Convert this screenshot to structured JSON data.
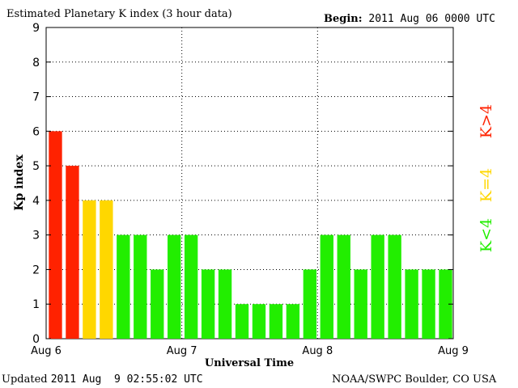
{
  "header": {
    "title": "Estimated Planetary K index (3 hour data)",
    "begin_label": "Begin:",
    "begin_value": "2011 Aug 06 0000 UTC"
  },
  "footer": {
    "updated_label": "Updated",
    "updated_value": "2011 Aug  9 02:55:02 UTC",
    "credit": "NOAA/SWPC Boulder, CO USA"
  },
  "legend": {
    "gt4": {
      "label": "K>4",
      "color": "#ff2200"
    },
    "eq4": {
      "label": "K=4",
      "color": "#ffd700"
    },
    "lt4": {
      "label": "K<4",
      "color": "#22ee00"
    }
  },
  "chart_data": {
    "type": "bar",
    "title": "Estimated Planetary K index (3 hour data)",
    "xlabel": "Universal Time",
    "ylabel": "Kp index",
    "ylim": [
      0,
      9
    ],
    "yticks": [
      "0",
      "1",
      "2",
      "3",
      "4",
      "5",
      "6",
      "7",
      "8",
      "9"
    ],
    "xticks": [
      "Aug 6",
      "Aug 7",
      "Aug 8",
      "Aug 9"
    ],
    "grid": true,
    "colors": {
      "high": "#ff2200",
      "equal": "#ffd700",
      "low": "#22ee00"
    },
    "values": [
      6,
      5,
      4,
      4,
      3,
      3,
      2,
      3,
      3,
      2,
      2,
      1,
      1,
      1,
      1,
      2,
      3,
      3,
      2,
      3,
      3,
      2,
      2,
      2
    ]
  }
}
